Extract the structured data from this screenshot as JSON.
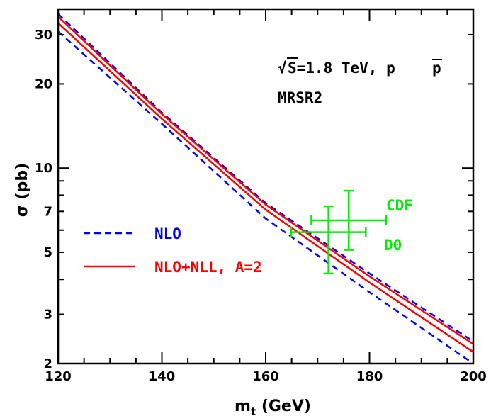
{
  "chart_data": {
    "type": "line",
    "xlabel": "m_t (GeV)",
    "ylabel": "σ (pb)",
    "xlim": [
      120,
      200
    ],
    "ylim": [
      2,
      37
    ],
    "yscale": "log",
    "x_ticks": [
      120,
      140,
      160,
      180,
      200
    ],
    "y_ticks": [
      2,
      3,
      5,
      7,
      10,
      20,
      30
    ],
    "grid": false,
    "legend_position": "left-middle",
    "annotations": {
      "sqrt": "√",
      "energy": "S=1.8 TeV, p",
      "pbar": "p",
      "pdf": "MRSR2"
    },
    "series": [
      {
        "name": "NLO",
        "color": "#0000ff",
        "dash": "dashed",
        "band": {
          "x": [
            120,
            140,
            160,
            180,
            200
          ],
          "upper": [
            35.6,
            15.8,
            7.5,
            4.2,
            2.4
          ],
          "lower": [
            30.8,
            14.4,
            6.6,
            3.6,
            2.0
          ]
        }
      },
      {
        "name": "NLO+NLL, A=2",
        "color": "#ff0000",
        "dash": "solid",
        "band": {
          "x": [
            120,
            140,
            160,
            180,
            200
          ],
          "upper": [
            34.8,
            15.6,
            7.4,
            4.1,
            2.35
          ],
          "lower": [
            33.0,
            15.0,
            7.1,
            3.9,
            2.2
          ]
        }
      }
    ],
    "measurements": [
      {
        "name": "CDF",
        "color": "#00ee00",
        "x": 176.0,
        "x_low": 168.8,
        "x_high": 183.2,
        "y": 6.5,
        "y_low": 5.1,
        "y_high": 8.3
      },
      {
        "name": "D0",
        "color": "#00ee00",
        "x": 172.1,
        "x_low": 164.9,
        "x_high": 179.3,
        "y": 5.9,
        "y_low": 4.2,
        "y_high": 7.3
      }
    ]
  }
}
